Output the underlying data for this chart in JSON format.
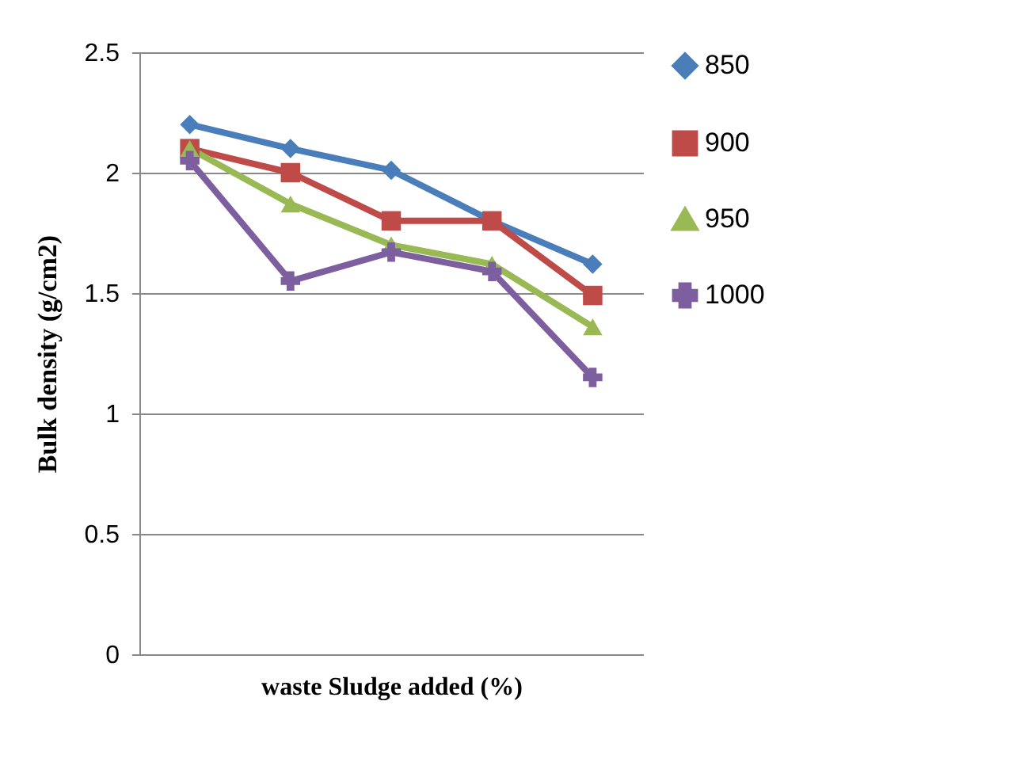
{
  "chart_data": {
    "type": "line",
    "xlabel": "waste Sludge added (%)",
    "ylabel": "Bulk density (g/cm2)",
    "categories": [
      null,
      null,
      null,
      null,
      null
    ],
    "ylim": [
      0,
      2.5
    ],
    "yticks": [
      0,
      0.5,
      1,
      1.5,
      2,
      2.5
    ],
    "grid": "y",
    "legend": "right",
    "series": [
      {
        "name": "850",
        "color": "#4a7ebb",
        "marker": "diamond",
        "values": [
          2.2,
          2.1,
          2.01,
          1.8,
          1.62
        ]
      },
      {
        "name": "900",
        "color": "#be4b48",
        "marker": "square",
        "values": [
          2.1,
          2.0,
          1.8,
          1.8,
          1.49
        ]
      },
      {
        "name": "950",
        "color": "#98b954",
        "marker": "triangle",
        "values": [
          2.1,
          1.87,
          1.7,
          1.62,
          1.36
        ]
      },
      {
        "name": "1000",
        "color": "#7d5fa0",
        "marker": "cross",
        "values": [
          2.05,
          1.55,
          1.67,
          1.59,
          1.15
        ]
      }
    ]
  }
}
